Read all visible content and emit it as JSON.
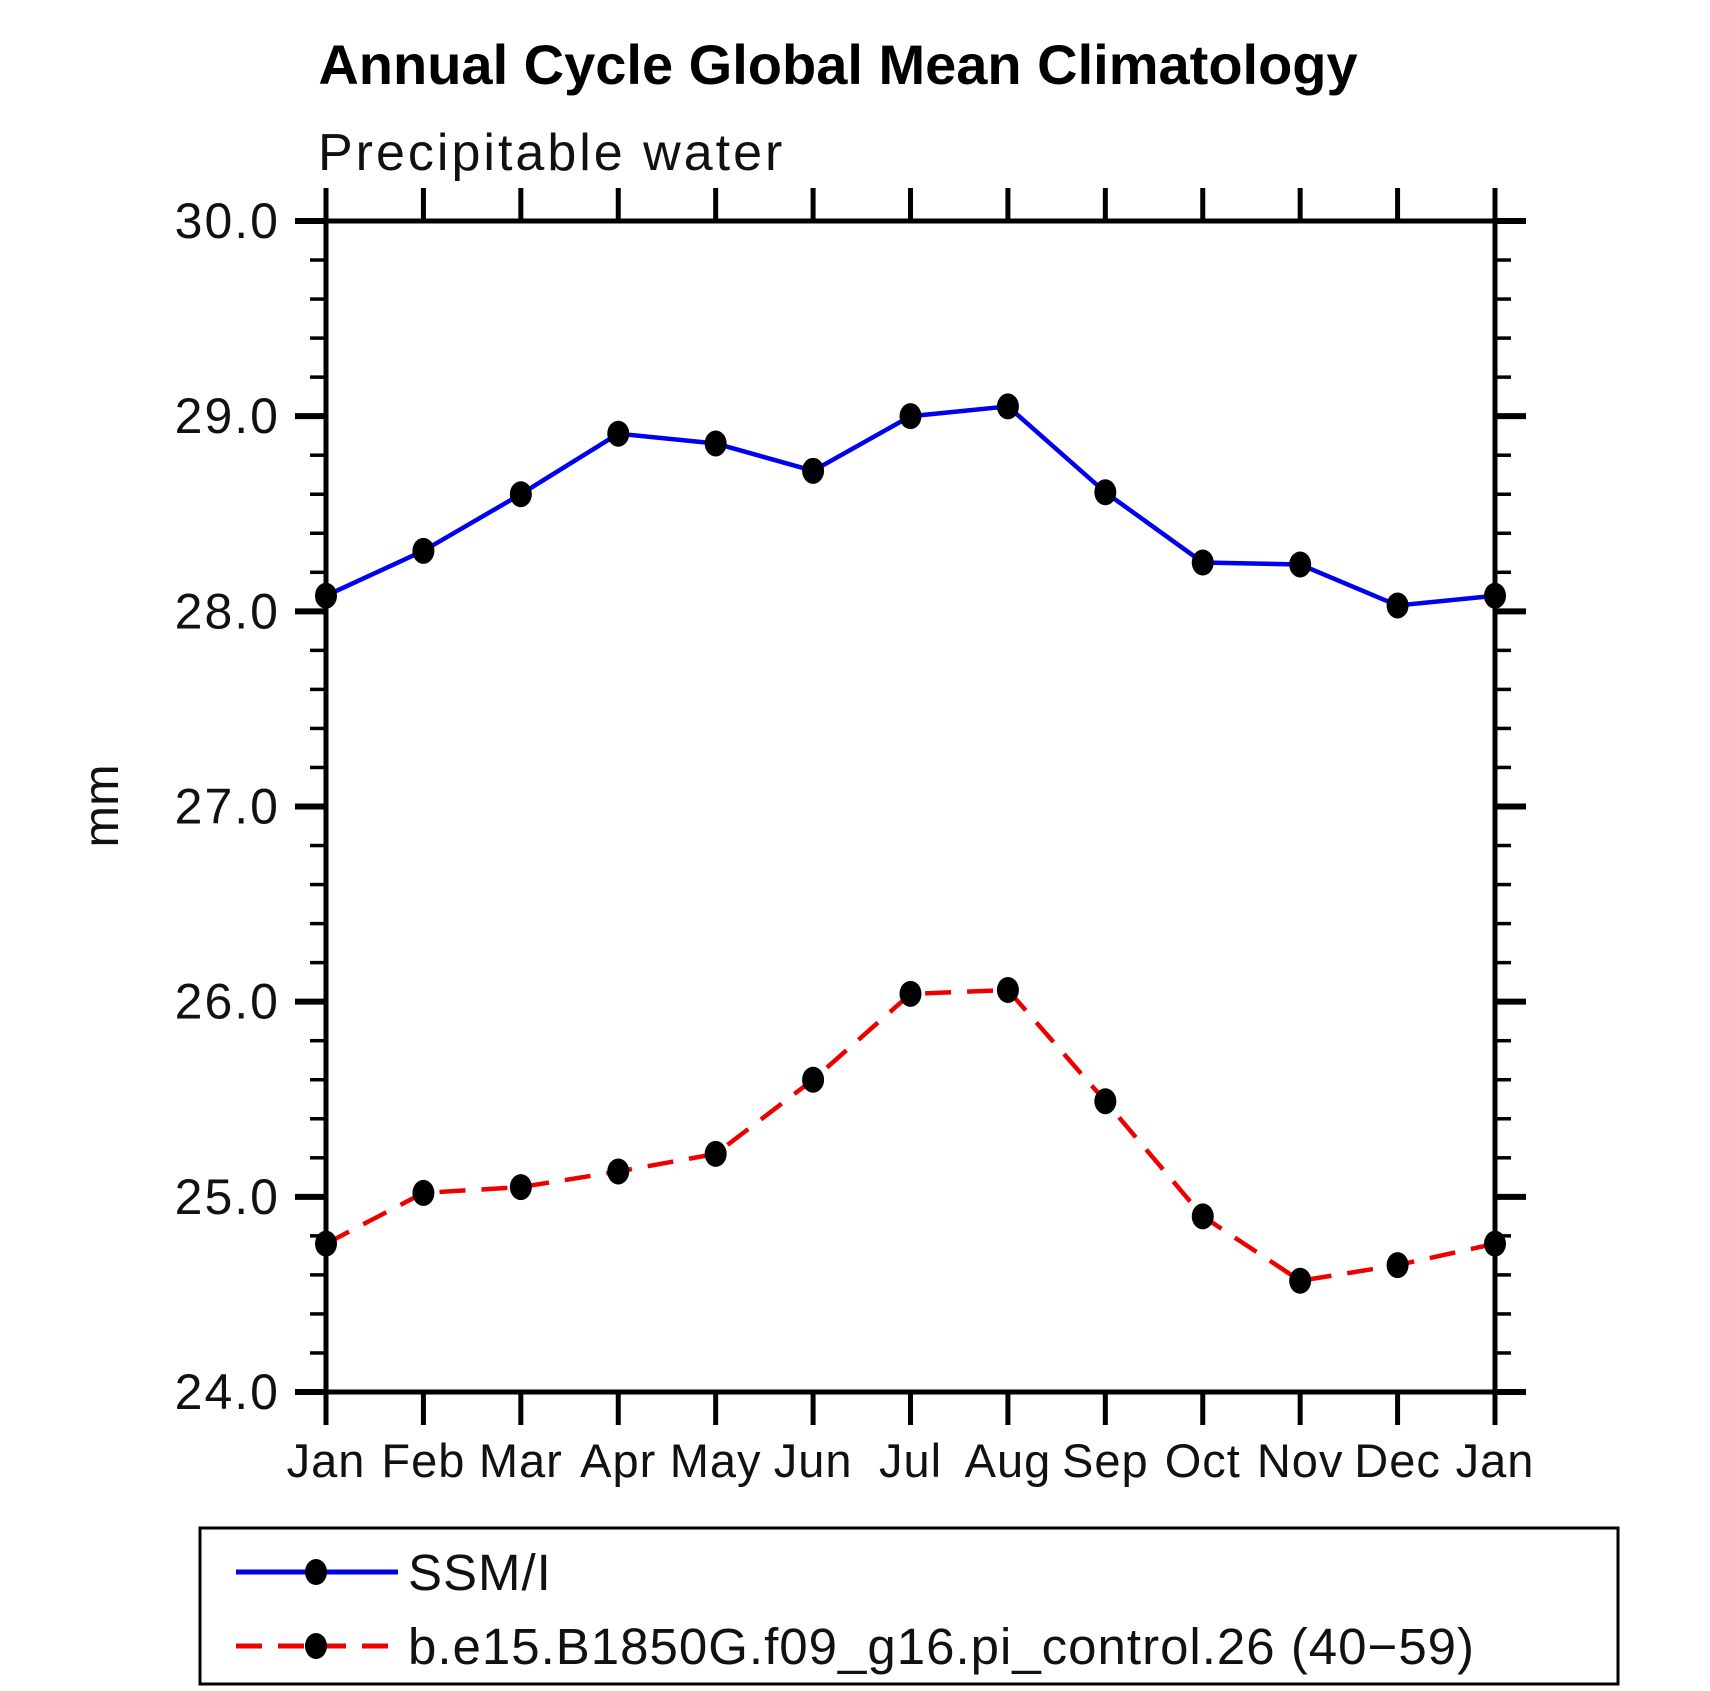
{
  "page": {
    "background": "#ffffff",
    "text_color": "#000000"
  },
  "chart_data": {
    "type": "line",
    "title": "Annual Cycle Global Mean Climatology",
    "subtitle": "Precipitable water",
    "ylabel": "mm",
    "xlabel": "",
    "ylim": [
      24.0,
      30.0
    ],
    "y_major_ticks": [
      24.0,
      25.0,
      26.0,
      27.0,
      28.0,
      29.0,
      30.0
    ],
    "y_tick_labels": [
      "24.0",
      "25.0",
      "26.0",
      "27.0",
      "28.0",
      "29.0",
      "30.0"
    ],
    "y_minor_step": 0.2,
    "x_tick_labels": [
      "Jan",
      "Feb",
      "Mar",
      "Apr",
      "May",
      "Jun",
      "Jul",
      "Aug",
      "Sep",
      "Oct",
      "Nov",
      "Dec",
      "Jan"
    ],
    "grid": false,
    "legend_position": "bottom-left-box",
    "marker": {
      "shape": "filled-oval",
      "color": "#000000"
    },
    "series": [
      {
        "name": "SSM/I",
        "color": "#0000EE",
        "line_style": "solid",
        "values": [
          28.08,
          28.31,
          28.6,
          28.91,
          28.86,
          28.72,
          29.0,
          29.05,
          28.61,
          28.25,
          28.24,
          28.03,
          28.08
        ]
      },
      {
        "name": "b.e15.B1850G.f09_g16.pi_control.26 (40−59)",
        "color": "#EE0000",
        "line_style": "dashed",
        "values": [
          24.76,
          25.02,
          25.05,
          25.13,
          25.22,
          25.6,
          26.04,
          26.06,
          25.49,
          24.9,
          24.57,
          24.65,
          24.76
        ]
      }
    ]
  }
}
